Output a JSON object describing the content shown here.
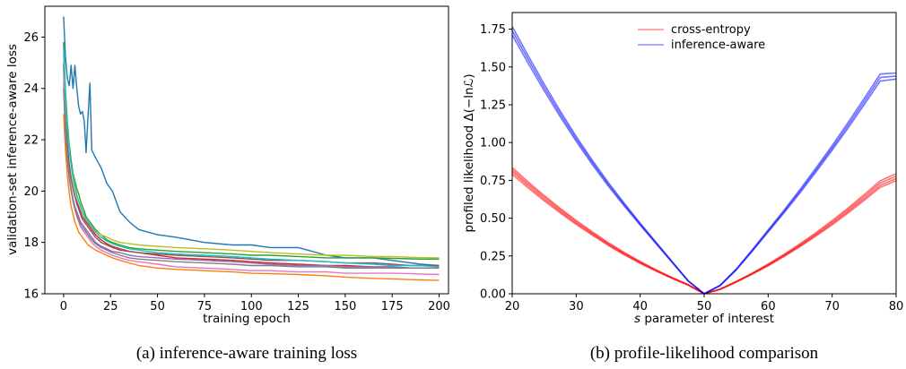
{
  "chart_data": [
    {
      "type": "line",
      "xlabel": "training epoch",
      "ylabel": "validation-set inference-aware loss",
      "caption": "(a) inference-aware training loss",
      "xlim": [
        -10,
        205
      ],
      "ylim": [
        16,
        27.2
      ],
      "xticks": [
        0,
        25,
        50,
        75,
        100,
        125,
        150,
        175,
        200
      ],
      "yticks": [
        16,
        18,
        20,
        22,
        24,
        26
      ],
      "grid": false,
      "x": [
        0,
        1,
        2,
        3,
        4,
        5,
        6,
        7,
        8,
        9,
        10,
        11,
        12,
        13,
        14,
        15,
        17,
        20,
        23,
        26,
        30,
        35,
        40,
        50,
        60,
        75,
        90,
        100,
        110,
        125,
        140,
        150,
        165,
        175,
        185,
        190,
        200
      ],
      "series": [
        {
          "color": "#1f77b4",
          "values": [
            26.8,
            25.2,
            24.4,
            24.1,
            24.9,
            24.0,
            24.9,
            24.0,
            23.3,
            23.0,
            23.1,
            22.7,
            21.5,
            22.9,
            24.2,
            21.6,
            21.3,
            20.9,
            20.3,
            20.0,
            19.2,
            18.8,
            18.5,
            18.3,
            18.2,
            18.0,
            17.9,
            17.9,
            17.8,
            17.8,
            17.5,
            17.4,
            17.4,
            17.3,
            17.2,
            17.15,
            17.1
          ]
        },
        {
          "color": "#ff7f0e",
          "values": [
            23.0,
            21.6,
            20.6,
            19.9,
            19.4,
            19.1,
            18.8,
            18.6,
            18.4,
            18.3,
            18.2,
            18.1,
            18.0,
            17.9,
            17.85,
            17.8,
            17.7,
            17.6,
            17.5,
            17.4,
            17.3,
            17.2,
            17.1,
            17.0,
            16.95,
            16.9,
            16.85,
            16.8,
            16.78,
            16.75,
            16.7,
            16.65,
            16.6,
            16.58,
            16.55,
            16.54,
            16.52
          ]
        },
        {
          "color": "#2ca02c",
          "values": [
            25.8,
            23.9,
            22.7,
            21.8,
            21.2,
            20.7,
            20.4,
            20.1,
            19.9,
            19.6,
            19.4,
            19.2,
            19.0,
            18.9,
            18.8,
            18.7,
            18.5,
            18.3,
            18.1,
            18.0,
            17.9,
            17.8,
            17.75,
            17.7,
            17.65,
            17.6,
            17.55,
            17.5,
            17.5,
            17.45,
            17.4,
            17.4,
            17.4,
            17.38,
            17.36,
            17.35,
            17.35
          ]
        },
        {
          "color": "#d62728",
          "values": [
            24.9,
            22.8,
            21.7,
            21.0,
            20.5,
            20.1,
            19.8,
            19.6,
            19.4,
            19.2,
            19.0,
            18.9,
            18.8,
            18.7,
            18.6,
            18.5,
            18.3,
            18.1,
            17.95,
            17.85,
            17.75,
            17.65,
            17.6,
            17.5,
            17.4,
            17.35,
            17.3,
            17.25,
            17.2,
            17.15,
            17.1,
            17.1,
            17.05,
            17.05,
            17.0,
            17.0,
            17.0
          ]
        },
        {
          "color": "#9467bd",
          "values": [
            24.2,
            22.3,
            21.3,
            20.6,
            20.1,
            19.7,
            19.4,
            19.2,
            19.0,
            18.8,
            18.7,
            18.6,
            18.5,
            18.4,
            18.3,
            18.2,
            18.0,
            17.85,
            17.75,
            17.65,
            17.6,
            17.5,
            17.45,
            17.4,
            17.35,
            17.3,
            17.25,
            17.2,
            17.15,
            17.1,
            17.1,
            17.05,
            17.05,
            17.05,
            17.0,
            17.0,
            17.0
          ]
        },
        {
          "color": "#8c564b",
          "values": [
            25.0,
            22.9,
            21.8,
            21.0,
            20.5,
            20.1,
            19.8,
            19.5,
            19.3,
            19.1,
            18.9,
            18.8,
            18.7,
            18.6,
            18.5,
            18.4,
            18.2,
            18.0,
            17.9,
            17.8,
            17.7,
            17.65,
            17.6,
            17.55,
            17.5,
            17.45,
            17.4,
            17.35,
            17.3,
            17.3,
            17.25,
            17.2,
            17.2,
            17.15,
            17.1,
            17.1,
            17.1
          ]
        },
        {
          "color": "#e377c2",
          "values": [
            24.5,
            22.4,
            21.3,
            20.5,
            20.0,
            19.6,
            19.3,
            19.0,
            18.8,
            18.6,
            18.5,
            18.4,
            18.3,
            18.2,
            18.1,
            18.0,
            17.85,
            17.7,
            17.6,
            17.5,
            17.4,
            17.3,
            17.25,
            17.15,
            17.05,
            17.0,
            16.95,
            16.9,
            16.9,
            16.85,
            16.85,
            16.8,
            16.8,
            16.8,
            16.78,
            16.77,
            16.75
          ]
        },
        {
          "color": "#7f7f7f",
          "values": [
            24.0,
            22.2,
            21.2,
            20.5,
            20.0,
            19.6,
            19.3,
            19.1,
            18.9,
            18.7,
            18.6,
            18.5,
            18.4,
            18.3,
            18.2,
            18.1,
            17.95,
            17.8,
            17.7,
            17.6,
            17.5,
            17.4,
            17.35,
            17.3,
            17.25,
            17.2,
            17.15,
            17.1,
            17.1,
            17.05,
            17.05,
            17.0,
            17.0,
            17.0,
            17.0,
            17.0,
            17.0
          ]
        },
        {
          "color": "#bcbd22",
          "values": [
            25.4,
            23.5,
            22.4,
            21.6,
            21.0,
            20.6,
            20.2,
            19.9,
            19.6,
            19.4,
            19.2,
            19.0,
            18.9,
            18.8,
            18.7,
            18.6,
            18.45,
            18.3,
            18.2,
            18.1,
            18.0,
            17.95,
            17.9,
            17.85,
            17.8,
            17.75,
            17.7,
            17.65,
            17.6,
            17.55,
            17.5,
            17.5,
            17.45,
            17.45,
            17.42,
            17.41,
            17.4
          ]
        },
        {
          "color": "#17becf",
          "values": [
            25.6,
            23.6,
            22.4,
            21.6,
            21.0,
            20.5,
            20.1,
            19.8,
            19.6,
            19.4,
            19.2,
            19.05,
            18.9,
            18.8,
            18.7,
            18.6,
            18.4,
            18.2,
            18.05,
            17.95,
            17.85,
            17.75,
            17.7,
            17.6,
            17.55,
            17.5,
            17.45,
            17.4,
            17.35,
            17.3,
            17.25,
            17.2,
            17.15,
            17.1,
            17.1,
            17.1,
            17.05
          ]
        }
      ]
    },
    {
      "type": "line",
      "xlabel": "s parameter of interest",
      "xlabel_symbol": "s",
      "xlabel_rest": " parameter of interest",
      "ylabel": "profiled likelihood Δ(−lnℒ)",
      "caption": "(b) profile-likelihood comparison",
      "xlim": [
        20,
        80
      ],
      "ylim": [
        0,
        1.86
      ],
      "xticks": [
        20,
        30,
        40,
        50,
        60,
        70,
        80
      ],
      "yticks": [
        0.0,
        0.25,
        0.5,
        0.75,
        1.0,
        1.25,
        1.5,
        1.75
      ],
      "ytick_labels": [
        "0.00",
        "0.25",
        "0.50",
        "0.75",
        "1.00",
        "1.25",
        "1.50",
        "1.75"
      ],
      "grid": false,
      "legend": {
        "position": "top-center",
        "entries": [
          {
            "label": "cross-entropy",
            "color": "#ff0000"
          },
          {
            "label": "inference-aware",
            "color": "#0000ff"
          }
        ]
      },
      "x": [
        20,
        22.5,
        25,
        27.5,
        30,
        32.5,
        35,
        37.5,
        40,
        42.5,
        45,
        47.5,
        50,
        52.5,
        55,
        57.5,
        60,
        62.5,
        65,
        67.5,
        70,
        72.5,
        75,
        77.5,
        80
      ],
      "series": [
        {
          "color": "#ff0000",
          "values": [
            0.82,
            0.727,
            0.638,
            0.555,
            0.476,
            0.402,
            0.332,
            0.268,
            0.209,
            0.155,
            0.105,
            0.059,
            0.0,
            0.03,
            0.08,
            0.134,
            0.192,
            0.256,
            0.324,
            0.397,
            0.474,
            0.556,
            0.642,
            0.732,
            0.777
          ]
        },
        {
          "color": "#ff0000",
          "values": [
            0.835,
            0.74,
            0.65,
            0.565,
            0.485,
            0.41,
            0.339,
            0.274,
            0.214,
            0.159,
            0.108,
            0.061,
            0.0,
            0.031,
            0.082,
            0.137,
            0.197,
            0.262,
            0.331,
            0.405,
            0.484,
            0.567,
            0.655,
            0.747,
            0.794
          ]
        },
        {
          "color": "#ff0000",
          "values": [
            0.806,
            0.714,
            0.627,
            0.545,
            0.467,
            0.395,
            0.326,
            0.263,
            0.205,
            0.152,
            0.103,
            0.058,
            0.0,
            0.029,
            0.078,
            0.131,
            0.188,
            0.251,
            0.318,
            0.389,
            0.465,
            0.545,
            0.629,
            0.717,
            0.762
          ]
        },
        {
          "color": "#ff0000",
          "values": [
            0.79,
            0.7,
            0.615,
            0.535,
            0.459,
            0.388,
            0.32,
            0.258,
            0.201,
            0.149,
            0.101,
            0.057,
            0.0,
            0.029,
            0.077,
            0.129,
            0.185,
            0.247,
            0.312,
            0.382,
            0.456,
            0.535,
            0.617,
            0.703,
            0.748
          ]
        },
        {
          "color": "#0000ff",
          "values": [
            1.74,
            1.55,
            1.365,
            1.19,
            1.025,
            0.87,
            0.725,
            0.59,
            0.46,
            0.335,
            0.21,
            0.085,
            0.0,
            0.055,
            0.16,
            0.285,
            0.415,
            0.545,
            0.68,
            0.82,
            0.965,
            1.115,
            1.27,
            1.43,
            1.44
          ]
        },
        {
          "color": "#0000ff",
          "values": [
            1.768,
            1.575,
            1.387,
            1.209,
            1.041,
            0.884,
            0.737,
            0.6,
            0.467,
            0.34,
            0.213,
            0.086,
            0.0,
            0.056,
            0.163,
            0.29,
            0.422,
            0.554,
            0.691,
            0.833,
            0.98,
            1.133,
            1.29,
            1.453,
            1.46
          ]
        },
        {
          "color": "#0000ff",
          "values": [
            1.712,
            1.525,
            1.343,
            1.171,
            1.009,
            0.856,
            0.713,
            0.581,
            0.453,
            0.33,
            0.207,
            0.084,
            0.0,
            0.054,
            0.157,
            0.28,
            0.408,
            0.536,
            0.669,
            0.807,
            0.95,
            1.097,
            1.25,
            1.407,
            1.42
          ]
        }
      ]
    }
  ]
}
